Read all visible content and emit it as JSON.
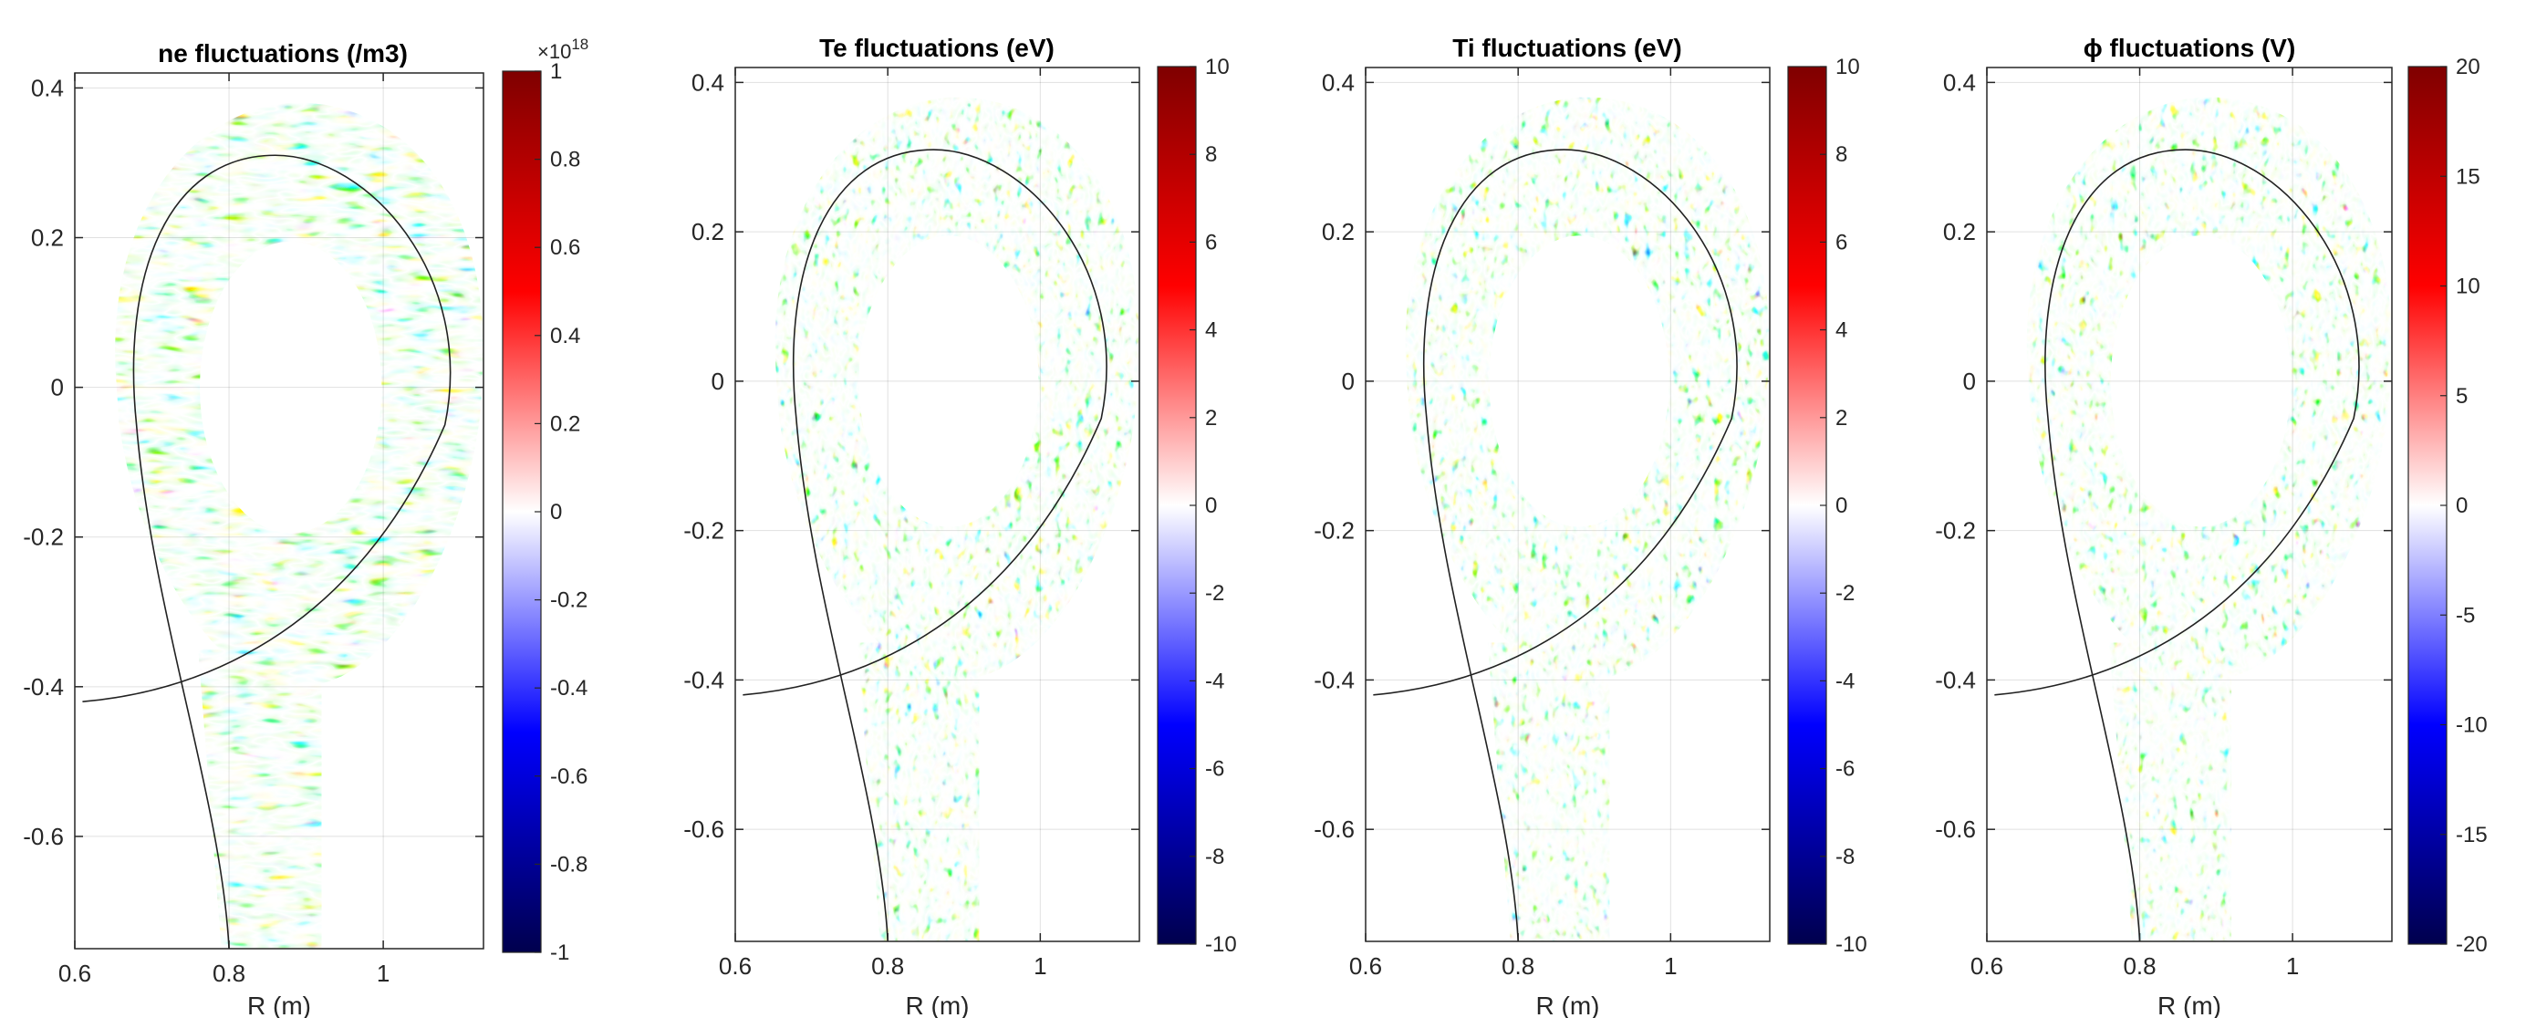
{
  "chart_data": [
    {
      "type": "heatmap",
      "title": "ne fluctuations (/m3)",
      "xlabel": "R (m)",
      "ylabel": "",
      "xlim": [
        0.6,
        1.13
      ],
      "ylim": [
        -0.75,
        0.42
      ],
      "xticks": [
        "0.6",
        "0.8",
        "1"
      ],
      "yticks": [
        "0.4",
        "0.2",
        "0",
        "-0.2",
        "-0.4",
        "-0.6"
      ],
      "colorbar": {
        "range": [
          -1,
          1
        ],
        "exponent": "×10",
        "exponent_power": "18",
        "ticks": [
          "1",
          "0.8",
          "0.6",
          "0.4",
          "0.2",
          "0",
          "-0.2",
          "-0.4",
          "-0.6",
          "-0.8",
          "-1"
        ],
        "colormap": [
          "#00004d",
          "#0000ff",
          "#ffffff",
          "#ff0000",
          "#7f0000"
        ]
      },
      "grid": true
    },
    {
      "type": "heatmap",
      "title": "Te fluctuations (eV)",
      "xlabel": "R (m)",
      "ylabel": "",
      "xlim": [
        0.6,
        1.13
      ],
      "ylim": [
        -0.75,
        0.42
      ],
      "xticks": [
        "0.6",
        "0.8",
        "1"
      ],
      "yticks": [
        "0.4",
        "0.2",
        "0",
        "-0.2",
        "-0.4",
        "-0.6"
      ],
      "colorbar": {
        "range": [
          -10,
          10
        ],
        "ticks": [
          "10",
          "8",
          "6",
          "4",
          "2",
          "0",
          "-2",
          "-4",
          "-6",
          "-8",
          "-10"
        ],
        "colormap": [
          "#00004d",
          "#0000ff",
          "#ffffff",
          "#ff0000",
          "#7f0000"
        ]
      },
      "grid": true
    },
    {
      "type": "heatmap",
      "title": "Ti fluctuations (eV)",
      "xlabel": "R (m)",
      "ylabel": "",
      "xlim": [
        0.6,
        1.13
      ],
      "ylim": [
        -0.75,
        0.42
      ],
      "xticks": [
        "0.6",
        "0.8",
        "1"
      ],
      "yticks": [
        "0.4",
        "0.2",
        "0",
        "-0.2",
        "-0.4",
        "-0.6"
      ],
      "colorbar": {
        "range": [
          -10,
          10
        ],
        "ticks": [
          "10",
          "8",
          "6",
          "4",
          "2",
          "0",
          "-2",
          "-4",
          "-6",
          "-8",
          "-10"
        ],
        "colormap": [
          "#00004d",
          "#0000ff",
          "#ffffff",
          "#ff0000",
          "#7f0000"
        ]
      },
      "grid": true
    },
    {
      "type": "heatmap",
      "title": "ϕ fluctuations (V)",
      "xlabel": "R (m)",
      "ylabel": "",
      "xlim": [
        0.6,
        1.13
      ],
      "ylim": [
        -0.75,
        0.42
      ],
      "xticks": [
        "0.6",
        "0.8",
        "1"
      ],
      "yticks": [
        "0.4",
        "0.2",
        "0",
        "-0.2",
        "-0.4",
        "-0.6"
      ],
      "colorbar": {
        "range": [
          -20,
          20
        ],
        "ticks": [
          "20",
          "15",
          "10",
          "5",
          "0",
          "-5",
          "-10",
          "-15",
          "-20"
        ],
        "colormap": [
          "#00004d",
          "#0000ff",
          "#ffffff",
          "#ff0000",
          "#7f0000"
        ]
      },
      "grid": true
    }
  ]
}
